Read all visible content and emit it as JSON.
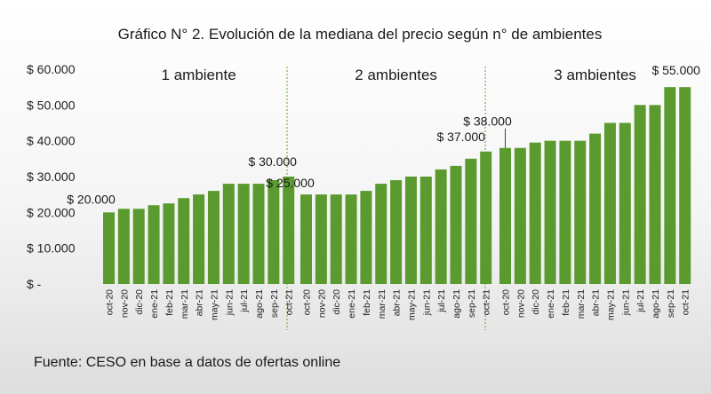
{
  "chart_data": {
    "type": "bar",
    "title": "Gráfico N° 2. Evolución de la mediana del precio según n° de ambientes",
    "source": "Fuente: CESO en base a datos de ofertas online",
    "color": "#5a9a2e",
    "ylim": [
      0,
      60000
    ],
    "yticks": [
      0,
      10000,
      20000,
      30000,
      40000,
      50000,
      60000
    ],
    "ytick_labels": [
      "$ -",
      "$ 10.000",
      "$ 20.000",
      "$ 30.000",
      "$ 40.000",
      "$ 50.000",
      "$ 60.000"
    ],
    "grid": false,
    "categories": [
      "oct-20",
      "nov-20",
      "dic-20",
      "ene-21",
      "feb-21",
      "mar-21",
      "abr-21",
      "may-21",
      "jun-21",
      "jul-21",
      "ago-21",
      "sep-21",
      "oct-21"
    ],
    "series": [
      {
        "name": "1 ambiente",
        "values": [
          20000,
          21000,
          21000,
          22000,
          22500,
          24000,
          25000,
          26000,
          28000,
          28000,
          28000,
          29000,
          30000
        ],
        "labels": [
          {
            "index": 0,
            "text": "$ 20.000"
          },
          {
            "index": 12,
            "text": "$ 30.000"
          }
        ]
      },
      {
        "name": "2 ambientes",
        "values": [
          25000,
          25000,
          25000,
          25000,
          26000,
          28000,
          29000,
          30000,
          30000,
          32000,
          33000,
          35000,
          37000
        ],
        "labels": [
          {
            "index": 0,
            "text": "$ 25.000"
          },
          {
            "index": 12,
            "text": "$ 37.000"
          }
        ]
      },
      {
        "name": "3 ambientes",
        "values": [
          38000,
          38000,
          39500,
          40000,
          40000,
          40000,
          42000,
          45000,
          45000,
          50000,
          50000,
          55000,
          55000
        ],
        "labels": [
          {
            "index": 0,
            "text": "$ 38.000"
          },
          {
            "index": 12,
            "text": "$ 55.000"
          }
        ]
      }
    ]
  }
}
